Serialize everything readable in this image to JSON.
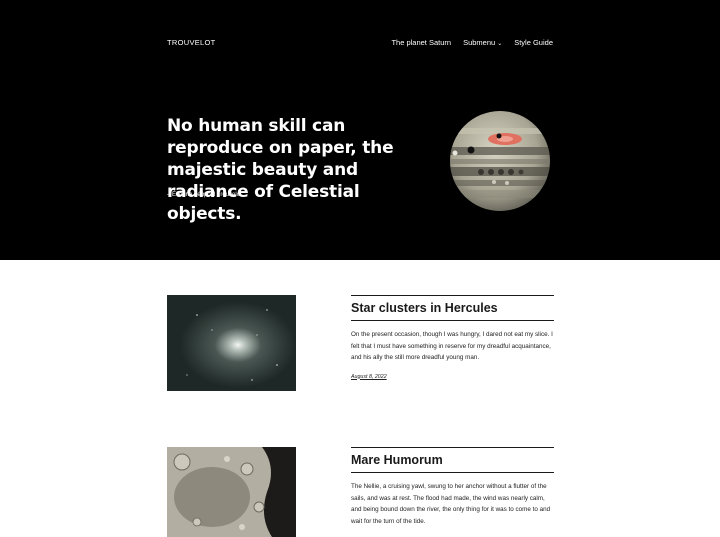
{
  "header": {
    "site_title": "TROUVELOT",
    "nav": [
      {
        "label": "The planet Saturn"
      },
      {
        "label": "Submenu"
      },
      {
        "label": "Style Guide"
      }
    ]
  },
  "hero": {
    "quote": "No human skill can reproduce on paper, the majestic beauty and radiance of Celestial objects.",
    "attribution": "– Étienne Léopold Trouvelot"
  },
  "posts": [
    {
      "title": "Star clusters in Hercules",
      "excerpt": "On the present occasion, though I was hungry, I dared not eat my slice. I felt that I must have something in reserve for my dreadful acquaintance, and his ally the still more dreadful young man.",
      "date": "August 8, 2022"
    },
    {
      "title": "Mare Humorum",
      "excerpt": "The Nellie, a cruising yawl, swung to her anchor without a flutter of the sails, and was at rest. The flood had made, the wind was nearly calm, and being bound down the river, the only thing for it was to come to and wait for the turn of the tide.",
      "date": ""
    }
  ],
  "colors": {
    "hero_bg": "#000000",
    "page_bg": "#ffffff",
    "text": "#1a1a1a",
    "planet_spot": "#e07060"
  }
}
